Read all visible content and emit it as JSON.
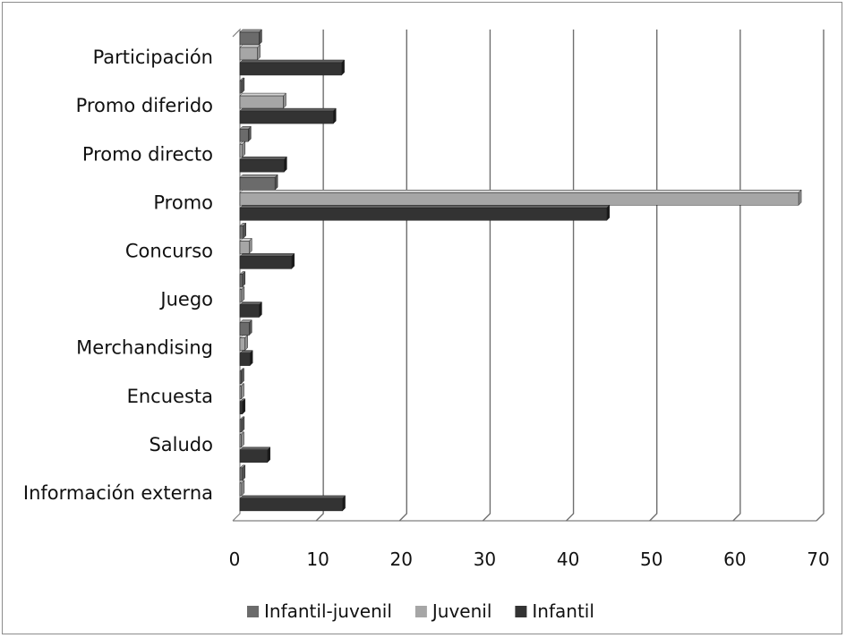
{
  "chart_data": {
    "type": "bar",
    "orientation": "horizontal",
    "style": "3d-clustered",
    "categories": [
      "Participación",
      "Promo diferido",
      "Promo directo",
      "Promo",
      "Concurso",
      "Juego",
      "Merchandising",
      "Encuesta",
      "Saludo",
      "Información externa"
    ],
    "series": [
      {
        "name": "Infantil-juvenil",
        "color": "#6b6b6b",
        "values": [
          2.3,
          0.2,
          1.0,
          4.2,
          0.4,
          0.3,
          1.1,
          0.1,
          0.2,
          0.3
        ]
      },
      {
        "name": "Juvenil",
        "color": "#a6a6a6",
        "values": [
          2.1,
          5.2,
          0.3,
          67.0,
          1.1,
          0.2,
          0.6,
          0.1,
          0.1,
          0.2
        ]
      },
      {
        "name": "Infantil",
        "color": "#333333",
        "values": [
          12.2,
          11.2,
          5.3,
          44.0,
          6.2,
          2.3,
          1.2,
          0.3,
          3.3,
          12.3
        ]
      }
    ],
    "xlim": [
      0,
      70
    ],
    "x_ticks": [
      0,
      10,
      20,
      30,
      40,
      50,
      60,
      70
    ],
    "grid": true,
    "legend_position": "bottom",
    "title": "",
    "xlabel": "",
    "ylabel": ""
  }
}
